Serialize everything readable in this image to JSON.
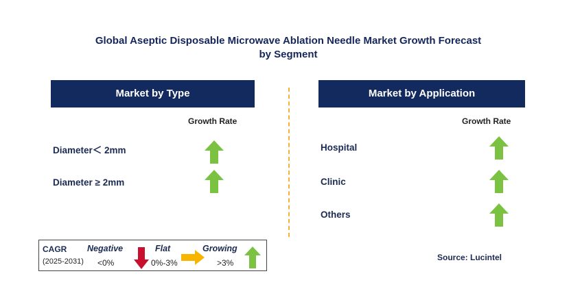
{
  "title_line1": "Global Aseptic Disposable Microwave Ablation Needle Market Growth Forecast",
  "title_line2": "by Segment",
  "left_panel": {
    "header": "Market by Type",
    "growth_label": "Growth Rate",
    "items": [
      {
        "label": "Diameter＜ 2mm",
        "trend": "growing"
      },
      {
        "label": "Diameter ≥ 2mm",
        "trend": "growing"
      }
    ]
  },
  "right_panel": {
    "header": "Market by Application",
    "growth_label": "Growth Rate",
    "items": [
      {
        "label": "Hospital",
        "trend": "growing"
      },
      {
        "label": "Clinic",
        "trend": "growing"
      },
      {
        "label": "Others",
        "trend": "growing"
      }
    ]
  },
  "legend": {
    "cagr_label": "CAGR",
    "period": "(2025-2031)",
    "negative": {
      "label": "Negative",
      "range": "<0%",
      "color": "#c8102e"
    },
    "flat": {
      "label": "Flat",
      "range": "0%-3%",
      "color": "#f7b500"
    },
    "growing": {
      "label": "Growing",
      "range": ">3%",
      "color": "#7cc242"
    }
  },
  "source": "Source: Lucintel",
  "colors": {
    "header_bg": "#132a5e",
    "divider": "#f2b233",
    "arrow_up": "#7cc242"
  }
}
